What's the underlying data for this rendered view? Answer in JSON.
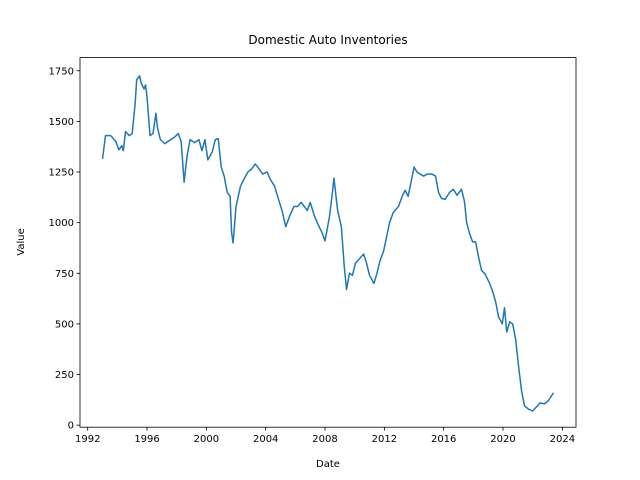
{
  "chart_data": {
    "type": "line",
    "title": "Domestic Auto Inventories",
    "x_label": "Date",
    "y_label": "Value",
    "xlim": [
      1991.48,
      2024.92
    ],
    "xticks": [
      1992,
      1996,
      2000,
      2004,
      2008,
      2012,
      2016,
      2020,
      2024
    ],
    "ylim": [
      -10,
      1815
    ],
    "yticks": [
      0,
      250,
      500,
      750,
      1000,
      1250,
      1500,
      1750
    ],
    "series": [
      {
        "name": "Value",
        "color": "#1f77b4",
        "x": [
          1993.0,
          1993.2,
          1993.55,
          1993.9,
          1994.1,
          1994.3,
          1994.4,
          1994.55,
          1994.8,
          1995.0,
          1995.2,
          1995.3,
          1995.5,
          1995.6,
          1995.8,
          1995.9,
          1996.0,
          1996.2,
          1996.4,
          1996.6,
          1996.7,
          1996.9,
          1997.2,
          1997.4,
          1997.6,
          1997.9,
          1998.1,
          1998.3,
          1998.5,
          1998.7,
          1998.9,
          1999.2,
          1999.5,
          1999.7,
          1999.9,
          2000.1,
          2000.4,
          2000.6,
          2000.8,
          2001.0,
          2001.2,
          2001.4,
          2001.6,
          2001.7,
          2001.8,
          2002.0,
          2002.3,
          2002.5,
          2002.8,
          2003.05,
          2003.3,
          2003.5,
          2003.8,
          2004.1,
          2004.3,
          2004.6,
          2004.8,
          2005.1,
          2005.35,
          2005.6,
          2005.9,
          2006.15,
          2006.4,
          2006.6,
          2006.8,
          2007.0,
          2007.3,
          2007.6,
          2007.8,
          2008.0,
          2008.3,
          2008.5,
          2008.6,
          2008.85,
          2009.1,
          2009.3,
          2009.45,
          2009.65,
          2009.85,
          2010.05,
          2010.3,
          2010.6,
          2010.8,
          2011.0,
          2011.3,
          2011.5,
          2011.7,
          2011.95,
          2012.15,
          2012.35,
          2012.6,
          2012.95,
          2013.2,
          2013.4,
          2013.6,
          2013.8,
          2014.0,
          2014.2,
          2014.4,
          2014.65,
          2014.9,
          2015.2,
          2015.45,
          2015.65,
          2015.85,
          2016.1,
          2016.4,
          2016.65,
          2016.9,
          2017.2,
          2017.4,
          2017.55,
          2017.75,
          2017.95,
          2018.15,
          2018.35,
          2018.55,
          2018.8,
          2019.1,
          2019.3,
          2019.5,
          2019.7,
          2019.95,
          2020.1,
          2020.25,
          2020.45,
          2020.65,
          2020.85,
          2021.05,
          2021.25,
          2021.45,
          2021.7,
          2022.0,
          2022.25,
          2022.5,
          2022.8,
          2023.05,
          2023.4
        ],
        "values": [
          1315,
          1430,
          1430,
          1400,
          1360,
          1380,
          1355,
          1450,
          1430,
          1440,
          1590,
          1705,
          1725,
          1690,
          1660,
          1680,
          1620,
          1430,
          1440,
          1540,
          1470,
          1410,
          1390,
          1400,
          1410,
          1425,
          1440,
          1400,
          1200,
          1330,
          1410,
          1395,
          1410,
          1355,
          1410,
          1310,
          1350,
          1410,
          1415,
          1275,
          1230,
          1150,
          1130,
          950,
          900,
          1080,
          1180,
          1210,
          1250,
          1265,
          1290,
          1270,
          1240,
          1250,
          1215,
          1180,
          1130,
          1060,
          980,
          1030,
          1080,
          1080,
          1100,
          1080,
          1060,
          1100,
          1030,
          980,
          950,
          910,
          1030,
          1150,
          1220,
          1060,
          980,
          780,
          670,
          750,
          740,
          800,
          820,
          845,
          800,
          740,
          700,
          750,
          810,
          860,
          930,
          1000,
          1050,
          1080,
          1130,
          1160,
          1130,
          1200,
          1275,
          1250,
          1240,
          1230,
          1240,
          1240,
          1230,
          1150,
          1120,
          1115,
          1150,
          1165,
          1135,
          1165,
          1105,
          1000,
          945,
          905,
          905,
          830,
          765,
          745,
          700,
          660,
          610,
          535,
          500,
          580,
          460,
          510,
          500,
          425,
          290,
          170,
          95,
          80,
          70,
          90,
          110,
          105,
          120,
          160
        ]
      }
    ]
  }
}
